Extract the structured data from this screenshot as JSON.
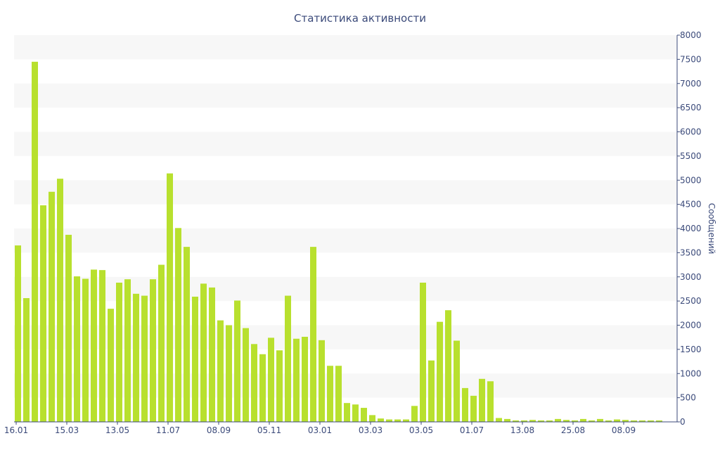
{
  "chart_data": {
    "type": "bar",
    "title": "Статистика активности",
    "ylabel": "Сообщений",
    "xlabel": "",
    "y_axis_position": "right",
    "ylim": [
      0,
      8000
    ],
    "y_ticks": [
      0,
      500,
      1000,
      1500,
      2000,
      2500,
      3000,
      3500,
      4000,
      4500,
      5000,
      5500,
      6000,
      6500,
      7000,
      7500,
      8000
    ],
    "x_tick_labels": [
      "16.01",
      "15.03",
      "13.05",
      "11.07",
      "08.09",
      "05.11",
      "03.01",
      "03.03",
      "03.05",
      "01.07",
      "13.08",
      "25.08",
      "08.09"
    ],
    "x_tick_bar_index": [
      0,
      6,
      12,
      18,
      24,
      30,
      36,
      42,
      48,
      54,
      60,
      66,
      72
    ],
    "grid": true,
    "bar_color": "#b8e02e",
    "band_color": "#f7f7f7",
    "values": [
      3650,
      2560,
      7450,
      4480,
      4760,
      5030,
      3870,
      3010,
      2960,
      3150,
      3140,
      2340,
      2880,
      2950,
      2650,
      2610,
      2950,
      3250,
      5140,
      4010,
      3620,
      2590,
      2860,
      2780,
      2100,
      2000,
      2510,
      1940,
      1610,
      1400,
      1740,
      1480,
      2610,
      1720,
      1760,
      3620,
      1690,
      1160,
      1160,
      390,
      360,
      290,
      140,
      70,
      50,
      50,
      50,
      330,
      2880,
      1270,
      2070,
      2310,
      1680,
      700,
      540,
      890,
      840,
      80,
      60,
      30,
      30,
      40,
      30,
      30,
      60,
      40,
      30,
      60,
      30,
      60,
      30,
      50,
      40,
      30,
      30,
      30,
      30
    ]
  }
}
